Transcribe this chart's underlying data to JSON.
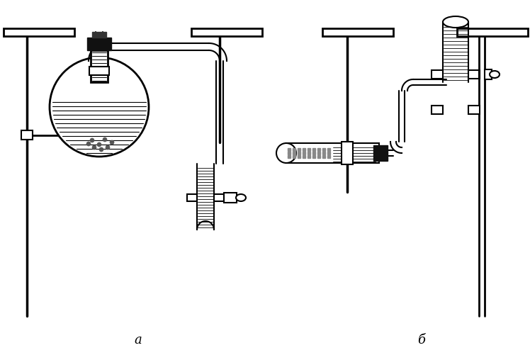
{
  "bg_color": "#ffffff",
  "line_color": "#000000",
  "label_a": "a",
  "label_b": "б",
  "label_fontsize": 13,
  "figsize": [
    7.48,
    5.02
  ],
  "dpi": 100
}
